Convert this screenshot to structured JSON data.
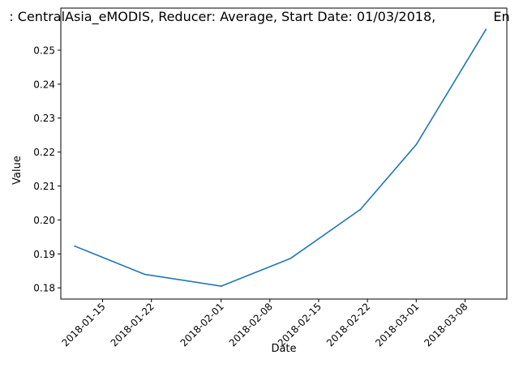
{
  "chart_data": {
    "type": "line",
    "title": ": CentralAsia_eMODIS, Reducer: Average, Start Date: 01/03/2018,              En",
    "xlabel": "Date",
    "ylabel": "Value",
    "x_ticks": [
      "2018-01-15",
      "2018-01-22",
      "2018-02-01",
      "2018-02-08",
      "2018-02-15",
      "2018-02-22",
      "2018-03-01",
      "2018-03-08"
    ],
    "y_ticks": [
      "0.18",
      "0.19",
      "0.20",
      "0.21",
      "0.22",
      "0.23",
      "0.24",
      "0.25"
    ],
    "xlim": [
      "2018-01-09",
      "2018-03-14"
    ],
    "ylim": [
      0.1767,
      0.2624
    ],
    "grid": false,
    "series": [
      {
        "color": "#1f77b4",
        "x": [
          "2018-01-11",
          "2018-01-21",
          "2018-02-01",
          "2018-02-11",
          "2018-02-21",
          "2018-03-01",
          "2018-03-11"
        ],
        "values": [
          0.1923,
          0.184,
          0.1805,
          0.1887,
          0.2031,
          0.2222,
          0.2561
        ]
      }
    ]
  }
}
